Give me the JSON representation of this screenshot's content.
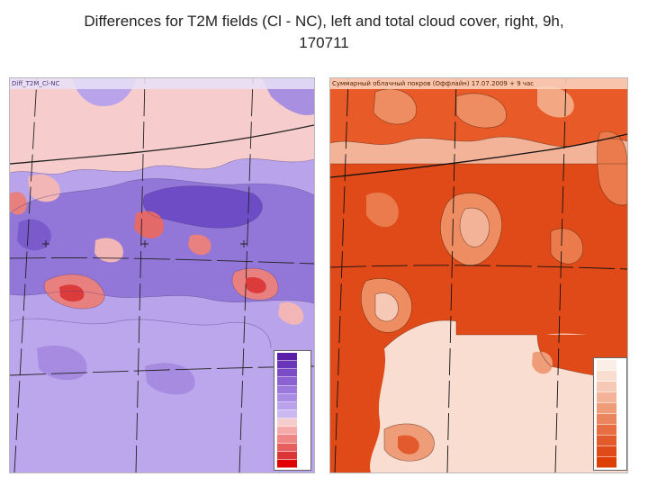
{
  "slide": {
    "title_line1": "Differences for T2M fields (Cl - NC), left and total cloud cover, right, 9h,",
    "title_line2": "170711"
  },
  "left_panel": {
    "header": "Diff_T2M_Cl-NC",
    "palette": [
      "#5a1fa8",
      "#6a35b8",
      "#7b4bc6",
      "#8c62d2",
      "#9c78dc",
      "#ab8ce4",
      "#bba2ec",
      "#cbb8f0",
      "#f6cccc",
      "#f5a9a9",
      "#ef8585",
      "#e65e5e",
      "#dc3535",
      "#e00000"
    ],
    "colors": {
      "background": "#b49ce8",
      "cold": "#8a6ad6",
      "deep_cold": "#6a48c4",
      "warm": "#f2b6b6",
      "hot": "#e46a6a"
    }
  },
  "right_panel": {
    "header": "Суммарный облачный покров (Оффлайн) 17.07.2009 + 9 час",
    "palette": [
      "#fbeee6",
      "#f9ddd0",
      "#f6c9b6",
      "#f3b398",
      "#ef9c79",
      "#eb855d",
      "#e76e42",
      "#e35a2c",
      "#e04a18",
      "#dd3f05"
    ],
    "colors": {
      "background": "#f5c2b0",
      "overcast": "#e2501a",
      "broken": "#ee8c62",
      "clear": "#f9dfd4"
    }
  }
}
